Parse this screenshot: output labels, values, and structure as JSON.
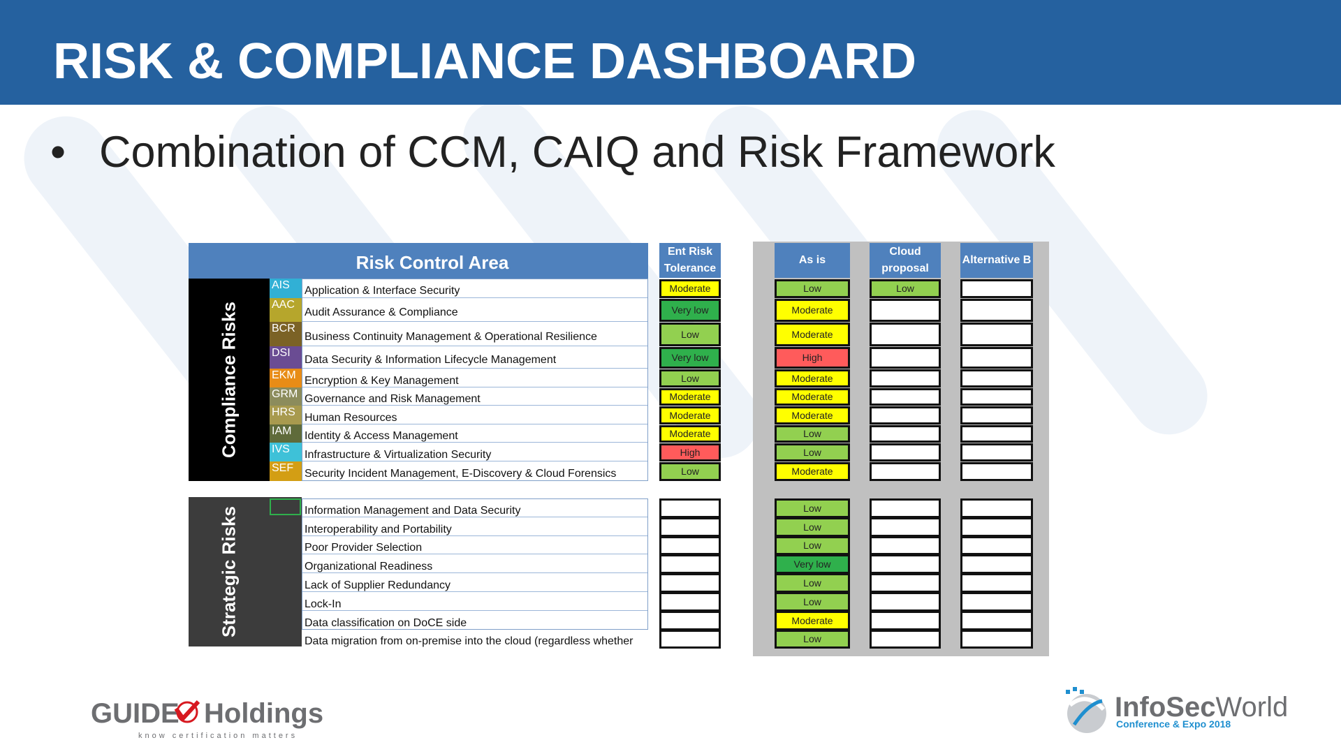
{
  "slide": {
    "title": "RISK & COMPLIANCE DASHBOARD",
    "bullet": "Combination of CCM, CAIQ and Risk Framework"
  },
  "table": {
    "header": "Risk Control Area",
    "columns": [
      "Ent Risk Tolerance",
      "As is",
      "Cloud proposal",
      "Alternative B"
    ],
    "compliance_label": "Compliance Risks",
    "strategic_label": "Strategic Risks",
    "compliance_rows": [
      {
        "code": "AIS",
        "code_color": "#31b0d5",
        "name": "Application & Interface Security",
        "tolerance": "Moderate",
        "as_is": "Low",
        "cloud": "Low",
        "alt_b": ""
      },
      {
        "code": "AAC",
        "code_color": "#b6a62c",
        "name": "Audit Assurance & Compliance",
        "tolerance": "Very low",
        "as_is": "Moderate",
        "cloud": "",
        "alt_b": ""
      },
      {
        "code": "BCR",
        "code_color": "#7b6226",
        "name": "Business Continuity Management & Operational Resilience",
        "tolerance": "Low",
        "as_is": "Moderate",
        "cloud": "",
        "alt_b": ""
      },
      {
        "code": "DSI",
        "code_color": "#6a4c93",
        "name": "Data Security & Information Lifecycle Management",
        "tolerance": "Very low",
        "as_is": "High",
        "cloud": "",
        "alt_b": ""
      },
      {
        "code": "EKM",
        "code_color": "#e88c16",
        "name": "Encryption & Key Management",
        "tolerance": "Low",
        "as_is": "Moderate",
        "cloud": "",
        "alt_b": ""
      },
      {
        "code": "GRM",
        "code_color": "#8c8c5c",
        "name": "Governance and Risk Management",
        "tolerance": "Moderate",
        "as_is": "Moderate",
        "cloud": "",
        "alt_b": ""
      },
      {
        "code": "HRS",
        "code_color": "#a89a4e",
        "name": "Human Resources",
        "tolerance": "Moderate",
        "as_is": "Moderate",
        "cloud": "",
        "alt_b": ""
      },
      {
        "code": "IAM",
        "code_color": "#5f6b3a",
        "name": "Identity & Access Management",
        "tolerance": "Moderate",
        "as_is": "Low",
        "cloud": "",
        "alt_b": ""
      },
      {
        "code": "IVS",
        "code_color": "#3ec1d8",
        "name": "Infrastructure & Virtualization Security",
        "tolerance": "High",
        "as_is": "Low",
        "cloud": "",
        "alt_b": ""
      },
      {
        "code": "SEF",
        "code_color": "#d39e14",
        "name": "Security Incident Management, E-Discovery & Cloud Forensics",
        "tolerance": "Low",
        "as_is": "Moderate",
        "cloud": "",
        "alt_b": ""
      }
    ],
    "strategic_rows": [
      {
        "name": "Information Management and Data Security",
        "tolerance": "",
        "as_is": "Low",
        "cloud": "",
        "alt_b": ""
      },
      {
        "name": "Interoperability and Portability",
        "tolerance": "",
        "as_is": "Low",
        "cloud": "",
        "alt_b": ""
      },
      {
        "name": "Poor Provider Selection",
        "tolerance": "",
        "as_is": "Low",
        "cloud": "",
        "alt_b": ""
      },
      {
        "name": "Organizational Readiness",
        "tolerance": "",
        "as_is": "Very low",
        "cloud": "",
        "alt_b": ""
      },
      {
        "name": "Lack of Supplier Redundancy",
        "tolerance": "",
        "as_is": "Low",
        "cloud": "",
        "alt_b": ""
      },
      {
        "name": "Lock-In",
        "tolerance": "",
        "as_is": "Low",
        "cloud": "",
        "alt_b": ""
      },
      {
        "name": "Data classification on DoCE side",
        "tolerance": "",
        "as_is": "Moderate",
        "cloud": "",
        "alt_b": ""
      },
      {
        "name": "Data migration from on-premise into the cloud (regardless whether",
        "tolerance": "",
        "as_is": "Low",
        "cloud": "",
        "alt_b": ""
      }
    ]
  },
  "logos": {
    "left_main": "GUIDE",
    "left_second": "Holdings",
    "left_tagline": "know certification matters",
    "right_main_a": "InfoSec",
    "right_main_b": "World",
    "right_tagline": "Conference & Expo 2018"
  },
  "colors": {
    "title_bar": "#25619f",
    "header_blue": "#4f81bd",
    "very_low": "#2fb04c",
    "low": "#92d050",
    "moderate": "#ffff00",
    "high": "#ff5b5b"
  }
}
